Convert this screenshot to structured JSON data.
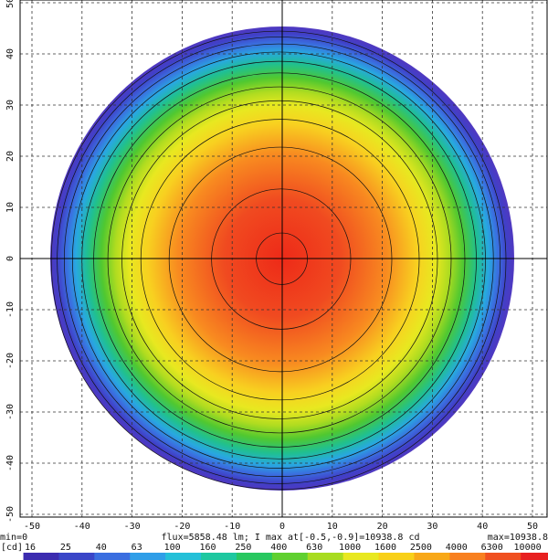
{
  "chart_data": {
    "type": "heatmap",
    "xlim": [
      -50,
      50
    ],
    "ylim": [
      -50,
      50
    ],
    "xticks": [
      -50,
      -40,
      -30,
      -20,
      -10,
      0,
      10,
      20,
      30,
      40,
      50
    ],
    "yticks": [
      -50,
      -40,
      -30,
      -20,
      -10,
      0,
      10,
      20,
      30,
      40,
      50
    ],
    "grid": true,
    "min_label": "min=0",
    "info": "flux=5858.48 lm; I max at[-0.5,-0.9]=10938.8 cd",
    "max_label": "max=10938.8",
    "colorbar_unit": "[cd]",
    "colorbar_ticks": [
      16,
      25,
      40,
      63,
      100,
      160,
      250,
      400,
      630,
      1000,
      1600,
      2500,
      4000,
      6300,
      10000
    ],
    "colorbar_colors": [
      "#3c2cb0",
      "#3a46c8",
      "#3a6ee0",
      "#2f9ee8",
      "#24c0d8",
      "#1ec8a0",
      "#28c860",
      "#60d030",
      "#a8dc20",
      "#e8e820",
      "#f8d018",
      "#f8a818",
      "#f88020",
      "#f05020",
      "#e82020"
    ]
  }
}
